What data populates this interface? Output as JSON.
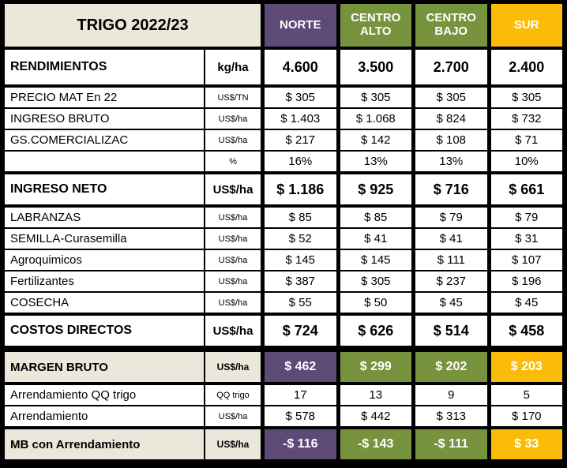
{
  "palette": {
    "purple": "#5D4A76",
    "olive": "#78933D",
    "gold": "#FBBC09",
    "beige": "#EBE7DA",
    "cell_bg": "#FFFFFF",
    "border": "#000000",
    "header_text": "#FFFFFF"
  },
  "table": {
    "title": "TRIGO 2022/23",
    "columns": [
      {
        "id": "norte",
        "label": "NORTE",
        "color": "#5D4A76"
      },
      {
        "id": "centro-alto",
        "label": "CENTRO ALTO",
        "color": "#78933D"
      },
      {
        "id": "centro-bajo",
        "label": "CENTRO BAJO",
        "color": "#78933D"
      },
      {
        "id": "sur",
        "label": "SUR",
        "color": "#FBBC09"
      }
    ],
    "rows": [
      {
        "id": "rendimientos",
        "label": "RENDIMIENTOS",
        "unit": "kg/ha",
        "values": [
          "4.600",
          "3.500",
          "2.700",
          "2.400"
        ],
        "style": "big",
        "sep": "thick"
      },
      {
        "id": "precio-mat",
        "label": "PRECIO  MAT En 22",
        "unit": "US$/TN",
        "values": [
          "$ 305",
          "$ 305",
          "$ 305",
          "$ 305"
        ],
        "style": "normal",
        "sep": "thick"
      },
      {
        "id": "ingreso-bruto",
        "label": "INGRESO BRUTO",
        "unit": "US$/ha",
        "values": [
          "$ 1.403",
          "$ 1.068",
          "$ 824",
          "$ 732"
        ],
        "style": "normal",
        "sep": "thin"
      },
      {
        "id": "gs-comercializac",
        "label": "GS.COMERCIALIZAC",
        "unit": "US$/ha",
        "values": [
          "$ 217",
          "$ 142",
          "$ 108",
          "$ 71"
        ],
        "style": "normal",
        "sep": "thin"
      },
      {
        "id": "pct-comercializacion",
        "label": "",
        "unit": "%",
        "values": [
          "16%",
          "13%",
          "13%",
          "10%"
        ],
        "style": "normal",
        "sep": "thin"
      },
      {
        "id": "ingreso-neto",
        "label": "INGRESO NETO",
        "unit": "US$/ha",
        "values": [
          "$ 1.186",
          "$ 925",
          "$ 716",
          "$ 661"
        ],
        "style": "big",
        "sep": "thick"
      },
      {
        "id": "labranzas",
        "label": "LABRANZAS",
        "unit": "US$/ha",
        "values": [
          "$ 85",
          "$ 85",
          "$ 79",
          "$ 79"
        ],
        "style": "normal",
        "sep": "thick"
      },
      {
        "id": "semilla",
        "label": "SEMILLA-Curasemilla",
        "unit": "US$/ha",
        "values": [
          "$ 52",
          "$ 41",
          "$ 41",
          "$ 31"
        ],
        "style": "normal",
        "sep": "thin"
      },
      {
        "id": "agroquimicos",
        "label": "Agroquimicos",
        "unit": "US$/ha",
        "values": [
          "$ 145",
          "$ 145",
          "$ 111",
          "$ 107"
        ],
        "style": "normal",
        "sep": "thin"
      },
      {
        "id": "fertilizantes",
        "label": "Fertilizantes",
        "unit": "US$/ha",
        "values": [
          "$ 387",
          "$ 305",
          "$ 237",
          "$ 196"
        ],
        "style": "normal",
        "sep": "thin"
      },
      {
        "id": "cosecha",
        "label": "COSECHA",
        "unit": "US$/ha",
        "values": [
          "$ 55",
          "$ 50",
          "$ 45",
          "$ 45"
        ],
        "style": "normal",
        "sep": "thin"
      },
      {
        "id": "costos-directos",
        "label": "COSTOS DIRECTOS",
        "unit": "US$/ha",
        "values": [
          "$ 724",
          "$ 626",
          "$ 514",
          "$ 458"
        ],
        "style": "big",
        "sep": "thick"
      },
      {
        "id": "margen-bruto",
        "label": "MARGEN BRUTO",
        "unit": "US$/ha",
        "values": [
          "$ 462",
          "$ 299",
          "$ 202",
          "$ 203"
        ],
        "style": "highlight",
        "sep": "xthick"
      },
      {
        "id": "arrendamiento-qq",
        "label": "Arrendamiento QQ trigo",
        "unit": "QQ trigo",
        "values": [
          "17",
          "13",
          "9",
          "5"
        ],
        "style": "normal",
        "sep": "thick"
      },
      {
        "id": "arrendamiento",
        "label": "Arrendamiento",
        "unit": "US$/ha",
        "values": [
          "$ 578",
          "$ 442",
          "$ 313",
          "$ 170"
        ],
        "style": "normal",
        "sep": "thin"
      },
      {
        "id": "mb-con-arrendamiento",
        "label": "MB con Arrendamiento",
        "unit": "US$/ha",
        "values": [
          "-$ 116",
          "-$ 143",
          "-$ 111",
          "$ 33"
        ],
        "style": "highlight",
        "sep": "thick"
      }
    ]
  },
  "chart_data": {
    "type": "table",
    "title": "TRIGO 2022/23",
    "columns": [
      "NORTE",
      "CENTRO ALTO",
      "CENTRO BAJO",
      "SUR"
    ],
    "rows": [
      {
        "label": "RENDIMIENTOS",
        "unit": "kg/ha",
        "values": [
          4600,
          3500,
          2700,
          2400
        ]
      },
      {
        "label": "PRECIO  MAT En 22",
        "unit": "US$/TN",
        "values": [
          305,
          305,
          305,
          305
        ]
      },
      {
        "label": "INGRESO BRUTO",
        "unit": "US$/ha",
        "values": [
          1403,
          1068,
          824,
          732
        ]
      },
      {
        "label": "GS.COMERCIALIZAC",
        "unit": "US$/ha",
        "values": [
          217,
          142,
          108,
          71
        ]
      },
      {
        "label": "GS.COMERCIALIZAC %",
        "unit": "%",
        "values": [
          16,
          13,
          13,
          10
        ]
      },
      {
        "label": "INGRESO NETO",
        "unit": "US$/ha",
        "values": [
          1186,
          925,
          716,
          661
        ]
      },
      {
        "label": "LABRANZAS",
        "unit": "US$/ha",
        "values": [
          85,
          85,
          79,
          79
        ]
      },
      {
        "label": "SEMILLA-Curasemilla",
        "unit": "US$/ha",
        "values": [
          52,
          41,
          41,
          31
        ]
      },
      {
        "label": "Agroquimicos",
        "unit": "US$/ha",
        "values": [
          145,
          145,
          111,
          107
        ]
      },
      {
        "label": "Fertilizantes",
        "unit": "US$/ha",
        "values": [
          387,
          305,
          237,
          196
        ]
      },
      {
        "label": "COSECHA",
        "unit": "US$/ha",
        "values": [
          55,
          50,
          45,
          45
        ]
      },
      {
        "label": "COSTOS DIRECTOS",
        "unit": "US$/ha",
        "values": [
          724,
          626,
          514,
          458
        ]
      },
      {
        "label": "MARGEN BRUTO",
        "unit": "US$/ha",
        "values": [
          462,
          299,
          202,
          203
        ]
      },
      {
        "label": "Arrendamiento QQ trigo",
        "unit": "QQ trigo",
        "values": [
          17,
          13,
          9,
          5
        ]
      },
      {
        "label": "Arrendamiento",
        "unit": "US$/ha",
        "values": [
          578,
          442,
          313,
          170
        ]
      },
      {
        "label": "MB con Arrendamiento",
        "unit": "US$/ha",
        "values": [
          -116,
          -143,
          -111,
          33
        ]
      }
    ]
  }
}
